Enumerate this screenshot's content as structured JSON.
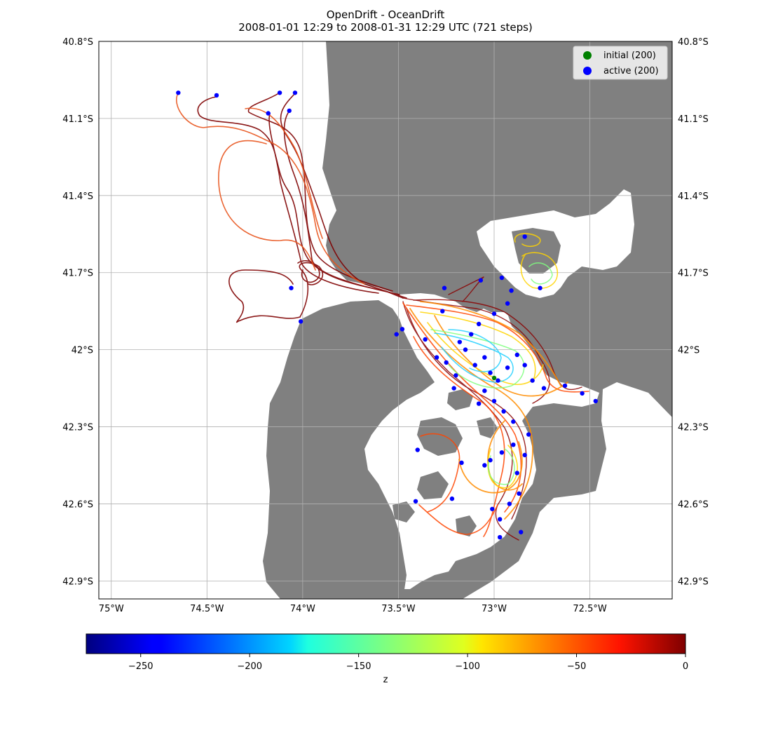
{
  "title": {
    "line1": "OpenDrift - OceanDrift",
    "line2": "2008-01-01 12:29 to 2008-01-31 12:29 UTC (721 steps)"
  },
  "map": {
    "lat_labels": [
      "40.8°S",
      "41.1°S",
      "41.4°S",
      "41.7°S",
      "42°S",
      "42.3°S",
      "42.6°S",
      "42.9°S"
    ],
    "lon_labels": [
      "75°W",
      "74.5°W",
      "74°W",
      "73.5°W",
      "73°W",
      "72.5°W"
    ],
    "lat_values": [
      -40.8,
      -41.1,
      -41.4,
      -41.7,
      -42.0,
      -42.3,
      -42.6,
      -42.9
    ],
    "lon_values": [
      -75.0,
      -74.5,
      -74.0,
      -73.5,
      -73.0,
      -72.5
    ],
    "extent": {
      "lon_min": -75.065,
      "lon_max": -72.07,
      "lat_max": -40.8,
      "lat_min": -42.97
    },
    "land_color": "#808080",
    "sea_color": "#ffffff",
    "grid": true
  },
  "legend": {
    "placement": "top-right",
    "items": [
      {
        "label": "initial (200)",
        "color": "#008000"
      },
      {
        "label": "active (200)",
        "color": "#0000ff"
      }
    ]
  },
  "colorbar": {
    "label": "z",
    "colormap": "jet",
    "range": [
      -275,
      0
    ],
    "ticks": [
      -250,
      -200,
      -150,
      -100,
      -50,
      0
    ],
    "tick_labels": [
      "−250",
      "−200",
      "−150",
      "−100",
      "−50",
      "0"
    ]
  },
  "trajectories": {
    "colors": {
      "shallow": "#7f0000",
      "orange": "#ff8c00",
      "yellow": "#ffe000",
      "green": "#7fff7f",
      "cyan": "#1fe0ff"
    },
    "active_points": [
      {
        "lon": -74.65,
        "lat": -41.0
      },
      {
        "lon": -74.45,
        "lat": -41.01
      },
      {
        "lon": -74.12,
        "lat": -41.0
      },
      {
        "lon": -74.04,
        "lat": -41.0
      },
      {
        "lon": -74.18,
        "lat": -41.08
      },
      {
        "lon": -74.07,
        "lat": -41.07
      },
      {
        "lon": -74.06,
        "lat": -41.76
      },
      {
        "lon": -74.01,
        "lat": -41.89
      },
      {
        "lon": -72.84,
        "lat": -41.56
      },
      {
        "lon": -72.76,
        "lat": -41.76
      },
      {
        "lon": -72.91,
        "lat": -41.77
      },
      {
        "lon": -72.96,
        "lat": -41.72
      },
      {
        "lon": -73.07,
        "lat": -41.73
      },
      {
        "lon": -73.26,
        "lat": -41.76
      },
      {
        "lon": -73.51,
        "lat": -41.94
      },
      {
        "lon": -73.48,
        "lat": -41.92
      },
      {
        "lon": -73.36,
        "lat": -41.96
      },
      {
        "lon": -73.3,
        "lat": -42.03
      },
      {
        "lon": -73.25,
        "lat": -42.05
      },
      {
        "lon": -73.2,
        "lat": -42.1
      },
      {
        "lon": -73.15,
        "lat": -42.0
      },
      {
        "lon": -73.1,
        "lat": -42.06
      },
      {
        "lon": -73.05,
        "lat": -42.03
      },
      {
        "lon": -73.02,
        "lat": -42.09
      },
      {
        "lon": -72.98,
        "lat": -42.12
      },
      {
        "lon": -72.93,
        "lat": -42.07
      },
      {
        "lon": -72.88,
        "lat": -42.02
      },
      {
        "lon": -72.84,
        "lat": -42.06
      },
      {
        "lon": -72.8,
        "lat": -42.12
      },
      {
        "lon": -72.74,
        "lat": -42.15
      },
      {
        "lon": -72.63,
        "lat": -42.14
      },
      {
        "lon": -72.54,
        "lat": -42.17
      },
      {
        "lon": -72.47,
        "lat": -42.2
      },
      {
        "lon": -73.05,
        "lat": -42.16
      },
      {
        "lon": -73.0,
        "lat": -42.2
      },
      {
        "lon": -72.95,
        "lat": -42.24
      },
      {
        "lon": -73.08,
        "lat": -42.21
      },
      {
        "lon": -73.21,
        "lat": -42.15
      },
      {
        "lon": -73.4,
        "lat": -42.39
      },
      {
        "lon": -73.17,
        "lat": -42.44
      },
      {
        "lon": -73.02,
        "lat": -42.43
      },
      {
        "lon": -72.96,
        "lat": -42.4
      },
      {
        "lon": -72.9,
        "lat": -42.37
      },
      {
        "lon": -72.84,
        "lat": -42.41
      },
      {
        "lon": -72.88,
        "lat": -42.48
      },
      {
        "lon": -73.05,
        "lat": -42.45
      },
      {
        "lon": -73.22,
        "lat": -42.58
      },
      {
        "lon": -73.41,
        "lat": -42.59
      },
      {
        "lon": -72.92,
        "lat": -42.6
      },
      {
        "lon": -72.87,
        "lat": -42.56
      },
      {
        "lon": -72.97,
        "lat": -42.66
      },
      {
        "lon": -73.01,
        "lat": -42.62
      },
      {
        "lon": -72.86,
        "lat": -42.71
      },
      {
        "lon": -72.97,
        "lat": -42.73
      },
      {
        "lon": -72.82,
        "lat": -42.33
      },
      {
        "lon": -72.9,
        "lat": -42.28
      },
      {
        "lon": -73.12,
        "lat": -41.94
      },
      {
        "lon": -73.18,
        "lat": -41.97
      },
      {
        "lon": -73.27,
        "lat": -41.85
      },
      {
        "lon": -73.0,
        "lat": -41.86
      },
      {
        "lon": -72.93,
        "lat": -41.82
      },
      {
        "lon": -73.08,
        "lat": -41.9
      }
    ],
    "initial_points": [
      {
        "lon": -73.0,
        "lat": -42.11
      }
    ]
  }
}
